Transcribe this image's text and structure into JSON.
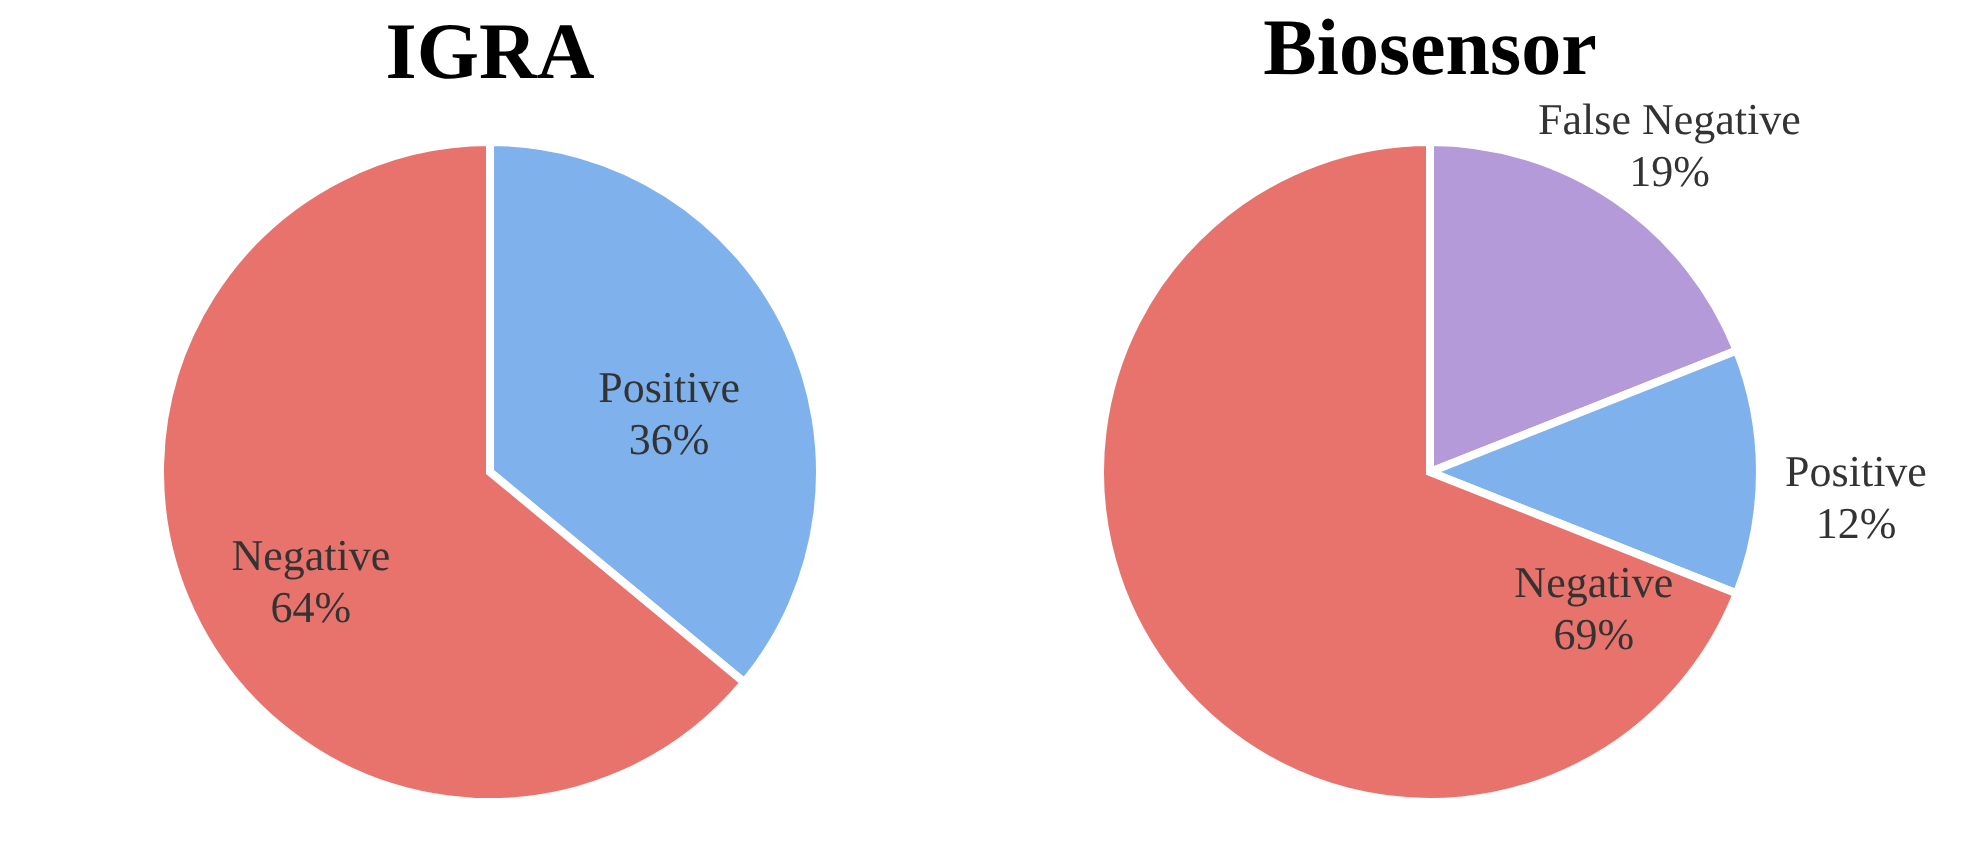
{
  "chart_data": [
    {
      "type": "pie",
      "title": "IGRA",
      "categories": [
        "Positive",
        "Negative"
      ],
      "values": [
        36,
        64
      ],
      "colors": [
        "#7fb2ec",
        "#e8736c"
      ],
      "value_labels": [
        "36%",
        "64%"
      ]
    },
    {
      "type": "pie",
      "title": "Biosensor",
      "categories": [
        "False Negative",
        "Positive",
        "Negative"
      ],
      "values": [
        19,
        12,
        69
      ],
      "colors": [
        "#b49ad8",
        "#7fb2ec",
        "#e8736c"
      ],
      "value_labels": [
        "19%",
        "12%",
        "69%"
      ]
    }
  ]
}
